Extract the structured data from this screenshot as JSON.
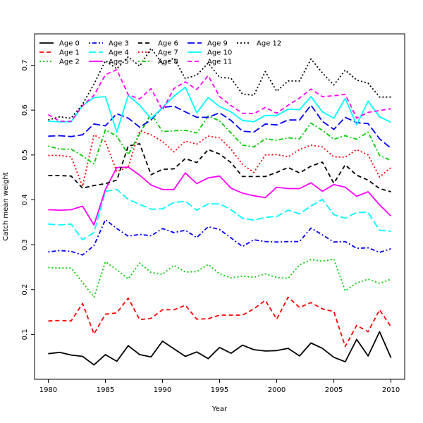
{
  "chart_data": {
    "type": "line",
    "title": "",
    "xlabel": "Year",
    "ylabel": "Catch mean weight",
    "xlim": [
      1978.8,
      2011.2
    ],
    "ylim": [
      0.0,
      0.77
    ],
    "xticks": [
      1980,
      1985,
      1990,
      1995,
      2000,
      2005,
      2010
    ],
    "yticks": [
      0.1,
      0.2,
      0.3,
      0.4,
      0.5,
      0.6,
      0.7
    ],
    "grid": false,
    "legend_position": "top-left",
    "legend_columns": 5,
    "x": [
      1980,
      1981,
      1982,
      1983,
      1984,
      1985,
      1986,
      1987,
      1988,
      1989,
      1990,
      1991,
      1992,
      1993,
      1994,
      1995,
      1996,
      1997,
      1998,
      1999,
      2000,
      2001,
      2002,
      2003,
      2004,
      2005,
      2006,
      2007,
      2008,
      2009,
      2010
    ],
    "series": [
      {
        "name": "Age 0",
        "color": "#000000",
        "dash": "solid",
        "values": [
          0.057,
          0.06,
          0.054,
          0.051,
          0.032,
          0.055,
          0.04,
          0.075,
          0.055,
          0.05,
          0.085,
          0.068,
          0.051,
          0.061,
          0.046,
          0.071,
          0.058,
          0.076,
          0.066,
          0.063,
          0.064,
          0.069,
          0.052,
          0.081,
          0.069,
          0.049,
          0.039,
          0.089,
          0.052,
          0.106,
          0.048
        ]
      },
      {
        "name": "Age 1",
        "color": "#ff0000",
        "dash": "dashed",
        "values": [
          0.13,
          0.131,
          0.13,
          0.169,
          0.101,
          0.145,
          0.148,
          0.181,
          0.133,
          0.136,
          0.155,
          0.155,
          0.165,
          0.134,
          0.135,
          0.143,
          0.143,
          0.143,
          0.157,
          0.176,
          0.134,
          0.183,
          0.16,
          0.171,
          0.157,
          0.151,
          0.073,
          0.12,
          0.106,
          0.155,
          0.117
        ]
      },
      {
        "name": "Age 2",
        "color": "#00cd00",
        "dash": "dotted",
        "values": [
          0.249,
          0.248,
          0.248,
          0.216,
          0.183,
          0.262,
          0.244,
          0.224,
          0.259,
          0.238,
          0.234,
          0.254,
          0.239,
          0.24,
          0.256,
          0.235,
          0.226,
          0.23,
          0.227,
          0.235,
          0.227,
          0.225,
          0.255,
          0.267,
          0.263,
          0.268,
          0.197,
          0.215,
          0.223,
          0.214,
          0.223
        ]
      },
      {
        "name": "Age 3",
        "color": "#0000ff",
        "dash": "dashdot",
        "values": [
          0.284,
          0.287,
          0.285,
          0.277,
          0.298,
          0.356,
          0.336,
          0.319,
          0.323,
          0.32,
          0.336,
          0.327,
          0.332,
          0.316,
          0.34,
          0.334,
          0.315,
          0.296,
          0.311,
          0.307,
          0.306,
          0.307,
          0.307,
          0.337,
          0.322,
          0.306,
          0.307,
          0.292,
          0.293,
          0.283,
          0.291
        ]
      },
      {
        "name": "Age 4",
        "color": "#00ffff",
        "dash": "longdash",
        "values": [
          0.346,
          0.344,
          0.346,
          0.311,
          0.327,
          0.419,
          0.423,
          0.401,
          0.39,
          0.379,
          0.38,
          0.394,
          0.397,
          0.377,
          0.391,
          0.391,
          0.378,
          0.359,
          0.355,
          0.361,
          0.363,
          0.377,
          0.369,
          0.386,
          0.401,
          0.367,
          0.359,
          0.372,
          0.372,
          0.332,
          0.33
        ]
      },
      {
        "name": "Age 5",
        "color": "#ff00ff",
        "dash": "solid",
        "values": [
          0.378,
          0.377,
          0.378,
          0.386,
          0.344,
          0.423,
          0.472,
          0.473,
          0.455,
          0.433,
          0.423,
          0.423,
          0.46,
          0.436,
          0.449,
          0.453,
          0.426,
          0.415,
          0.409,
          0.405,
          0.428,
          0.425,
          0.425,
          0.438,
          0.419,
          0.434,
          0.428,
          0.408,
          0.418,
          0.389,
          0.364
        ]
      },
      {
        "name": "Age 6",
        "color": "#000000",
        "dash": "dashed",
        "values": [
          0.454,
          0.454,
          0.453,
          0.426,
          0.432,
          0.436,
          0.444,
          0.52,
          0.525,
          0.456,
          0.468,
          0.469,
          0.492,
          0.483,
          0.512,
          0.502,
          0.483,
          0.452,
          0.452,
          0.452,
          0.461,
          0.472,
          0.46,
          0.475,
          0.484,
          0.437,
          0.478,
          0.455,
          0.444,
          0.425,
          0.418
        ]
      },
      {
        "name": "Age 7",
        "color": "#ff0000",
        "dash": "dotted",
        "values": [
          0.499,
          0.499,
          0.496,
          0.43,
          0.545,
          0.53,
          0.463,
          0.473,
          0.554,
          0.545,
          0.53,
          0.507,
          0.531,
          0.524,
          0.542,
          0.538,
          0.513,
          0.479,
          0.461,
          0.5,
          0.501,
          0.496,
          0.512,
          0.522,
          0.518,
          0.496,
          0.495,
          0.512,
          0.5,
          0.451,
          0.472
        ]
      },
      {
        "name": "Age 8",
        "color": "#00cd00",
        "dash": "dashdot",
        "values": [
          0.52,
          0.513,
          0.513,
          0.498,
          0.48,
          0.556,
          0.542,
          0.501,
          0.547,
          0.592,
          0.552,
          0.554,
          0.555,
          0.549,
          0.587,
          0.576,
          0.549,
          0.522,
          0.518,
          0.536,
          0.533,
          0.538,
          0.536,
          0.571,
          0.555,
          0.535,
          0.543,
          0.535,
          0.551,
          0.499,
          0.488
        ]
      },
      {
        "name": "Age 9",
        "color": "#0000ff",
        "dash": "longdash",
        "values": [
          0.542,
          0.543,
          0.541,
          0.545,
          0.569,
          0.565,
          0.592,
          0.582,
          0.562,
          0.578,
          0.606,
          0.609,
          0.596,
          0.584,
          0.584,
          0.594,
          0.577,
          0.553,
          0.551,
          0.569,
          0.567,
          0.578,
          0.578,
          0.611,
          0.575,
          0.557,
          0.584,
          0.572,
          0.57,
          0.536,
          0.515
        ]
      },
      {
        "name": "Age 10",
        "color": "#00ffff",
        "dash": "solid",
        "values": [
          0.575,
          0.574,
          0.574,
          0.61,
          0.628,
          0.63,
          0.551,
          0.633,
          0.611,
          0.581,
          0.606,
          0.631,
          0.651,
          0.594,
          0.628,
          0.608,
          0.596,
          0.577,
          0.574,
          0.588,
          0.588,
          0.602,
          0.601,
          0.63,
          0.596,
          0.582,
          0.626,
          0.567,
          0.62,
          0.585,
          0.573
        ]
      },
      {
        "name": "Age 11",
        "color": "#ff00ff",
        "dash": "dashed",
        "values": [
          0.59,
          0.575,
          0.575,
          0.61,
          0.633,
          0.679,
          0.69,
          0.634,
          0.625,
          0.648,
          0.6,
          0.648,
          0.663,
          0.646,
          0.677,
          0.63,
          0.61,
          0.593,
          0.592,
          0.606,
          0.593,
          0.611,
          0.627,
          0.647,
          0.63,
          0.632,
          0.635,
          0.582,
          0.595,
          0.599,
          0.603
        ]
      },
      {
        "name": "Age 12",
        "color": "#000000",
        "dash": "dotted",
        "values": [
          0.578,
          0.585,
          0.582,
          0.613,
          0.658,
          0.71,
          0.692,
          0.719,
          0.698,
          0.738,
          0.703,
          0.716,
          0.67,
          0.678,
          0.705,
          0.673,
          0.671,
          0.636,
          0.633,
          0.686,
          0.642,
          0.665,
          0.665,
          0.714,
          0.683,
          0.656,
          0.689,
          0.667,
          0.66,
          0.629,
          0.629
        ]
      }
    ]
  }
}
